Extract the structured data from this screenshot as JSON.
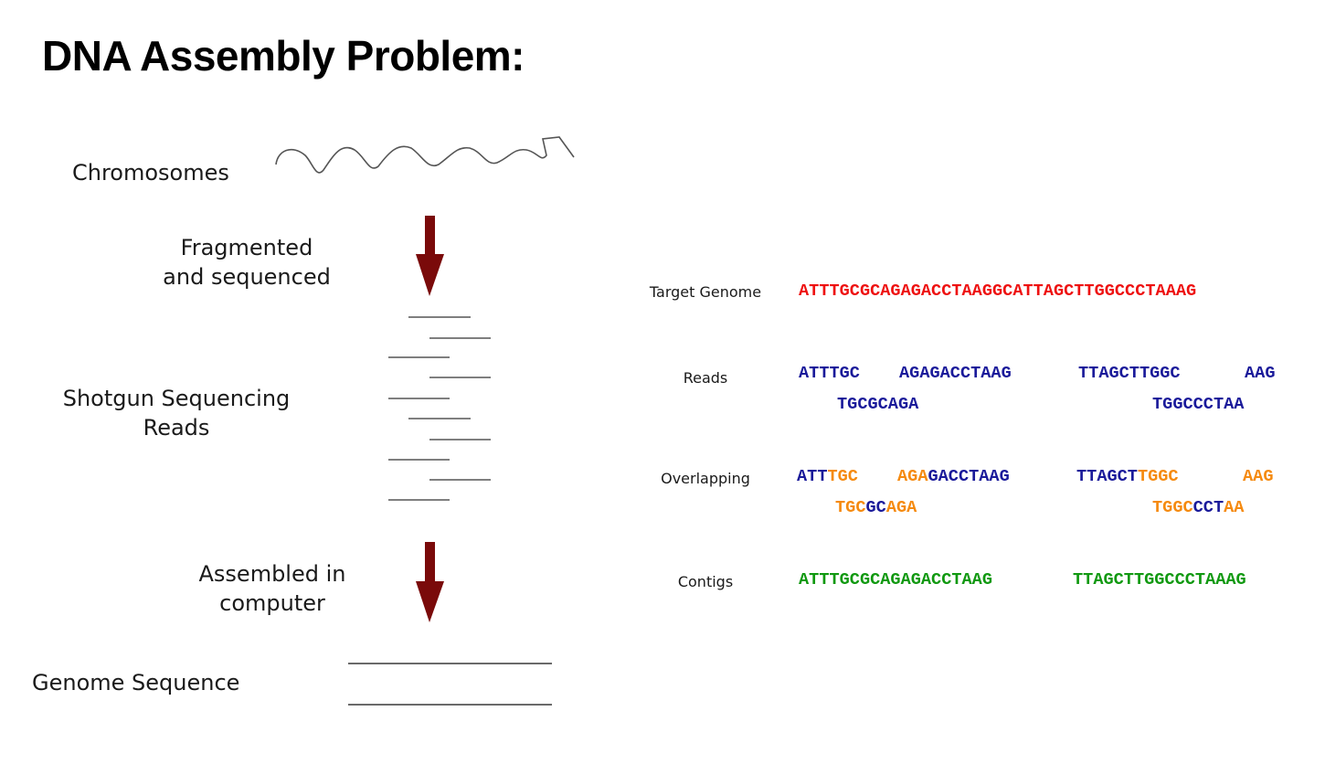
{
  "title": "DNA Assembly Problem:",
  "left": {
    "chromosomes": "Chromosomes",
    "fragmented_1": "Fragmented",
    "fragmented_2": "and sequenced",
    "shotgun_1": "Shotgun Sequencing",
    "shotgun_2": "Reads",
    "assembled_1": "Assembled in",
    "assembled_2": "computer",
    "genome": "Genome Sequence"
  },
  "right": {
    "target_label": "Target Genome",
    "target_seq": "ATTTGCGCAGAGACCTAAGGCATTAGCTTGGCCCTAAAG",
    "reads_label": "Reads",
    "reads": [
      "ATTTGC",
      "AGAGACCTAAG",
      "TTAGCTTGGC",
      "AAG",
      "TGCGCAGA",
      "TGGCCCTAA"
    ],
    "overlap_label": "Overlapping",
    "overlap": {
      "o1a": "ATT",
      "o1b": "TGC",
      "o2a": "AGA",
      "o2b": "GACCTAAG",
      "o3a": "TTAGCT",
      "o3b": "TGGC",
      "o4a": "AAG",
      "o5a": "TGC",
      "o5b": "GC",
      "o5c": "AGA",
      "o6a": "TGGC",
      "o6b": "CCT",
      "o6c": "AA"
    },
    "contigs_label": "Contigs",
    "contigs": [
      "ATTTGCGCAGAGACCTAAG",
      "TTAGCTTGGCCCTAAAG"
    ]
  },
  "colors": {
    "target": "#ee1111",
    "read": "#1a1a9a",
    "overlap": "#f58a0f",
    "contig": "#119911",
    "arrow": "#7a0a0a"
  }
}
